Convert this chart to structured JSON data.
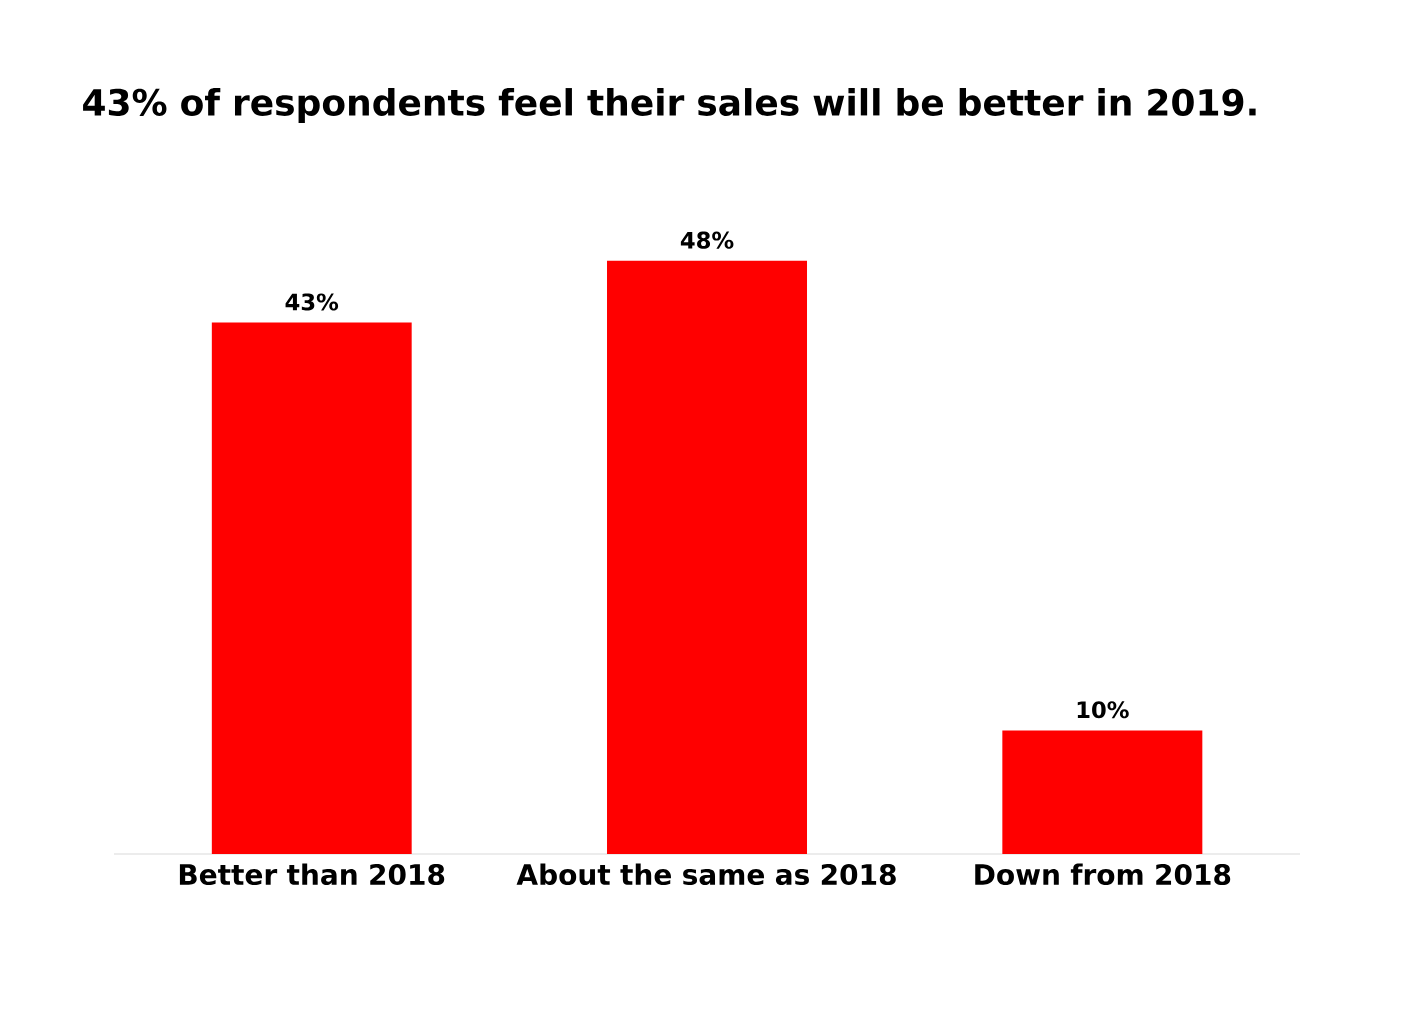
{
  "chart_data": {
    "type": "bar",
    "title": "43% of respondents feel their sales will be better in 2019.",
    "categories": [
      "Better than 2018",
      "About the same as 2018",
      "Down from 2018"
    ],
    "values": [
      43,
      48,
      10
    ],
    "color": "#ff0000",
    "value_labels": [
      "43%",
      "48%",
      "10%"
    ],
    "grid": false
  }
}
